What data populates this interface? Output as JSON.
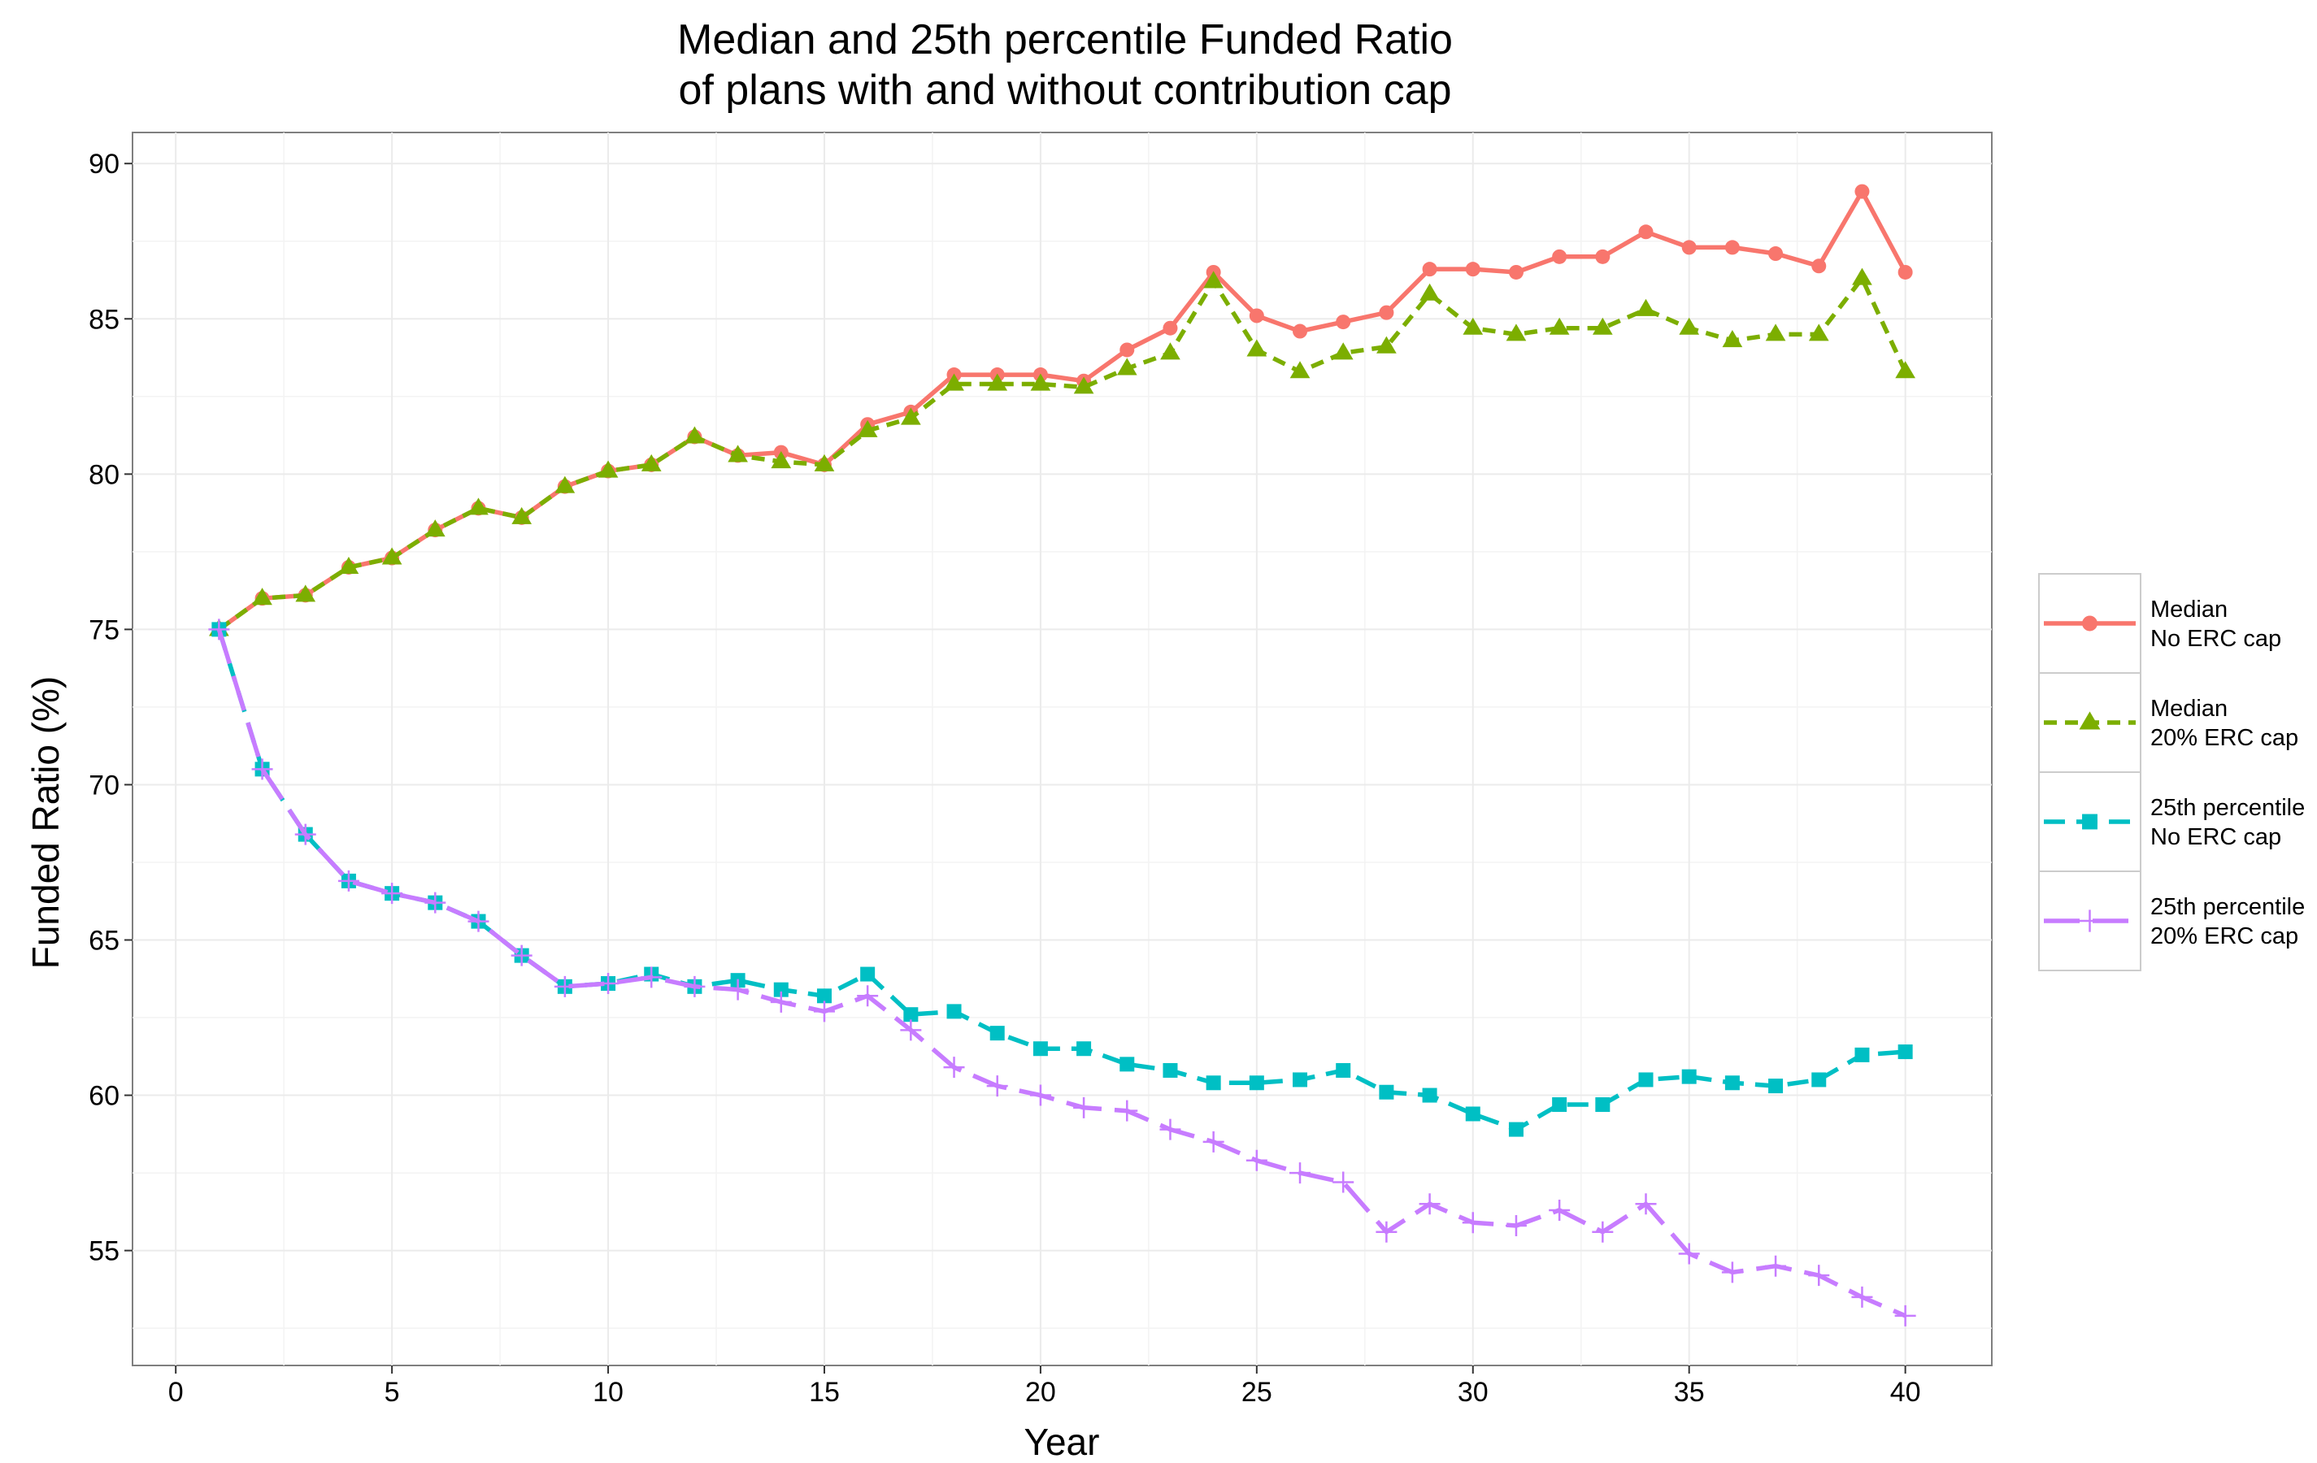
{
  "chart_data": {
    "type": "line",
    "title": [
      "Median and 25th percentile Funded Ratio",
      "of plans with and without contribution cap"
    ],
    "xlabel": "Year",
    "ylabel": "Funded Ratio (%)",
    "xlim": [
      -1,
      42
    ],
    "ylim": [
      51.3,
      91
    ],
    "xticks": [
      0,
      5,
      10,
      15,
      20,
      25,
      30,
      35,
      40
    ],
    "yticks": [
      55,
      60,
      65,
      70,
      75,
      80,
      85,
      90
    ],
    "grid": true,
    "legend_position": "right",
    "x": [
      1,
      2,
      3,
      4,
      5,
      6,
      7,
      8,
      9,
      10,
      11,
      12,
      13,
      14,
      15,
      16,
      17,
      18,
      19,
      20,
      21,
      22,
      23,
      24,
      25,
      26,
      27,
      28,
      29,
      30,
      31,
      32,
      33,
      34,
      35,
      36,
      37,
      38,
      39,
      40
    ],
    "series": [
      {
        "name": [
          "Median",
          "No ERC cap"
        ],
        "color": "#F8766D",
        "dash": "solid",
        "marker": "circle",
        "values": [
          75.0,
          76.0,
          76.1,
          77.0,
          77.3,
          78.2,
          78.9,
          78.6,
          79.6,
          80.1,
          80.3,
          81.2,
          80.6,
          80.7,
          80.3,
          81.6,
          82.0,
          83.2,
          83.2,
          83.2,
          83.0,
          84.0,
          84.7,
          86.5,
          85.1,
          84.6,
          84.9,
          85.2,
          86.6,
          86.6,
          86.5,
          87.0,
          87.0,
          87.8,
          87.3,
          87.3,
          87.1,
          86.7,
          89.1,
          86.5
        ]
      },
      {
        "name": [
          "Median",
          "20% ERC cap"
        ],
        "color": "#7CAE00",
        "dash": "dotted",
        "marker": "triangle",
        "values": [
          75.0,
          76.0,
          76.1,
          77.0,
          77.3,
          78.2,
          78.9,
          78.6,
          79.6,
          80.1,
          80.3,
          81.2,
          80.6,
          80.4,
          80.3,
          81.4,
          81.8,
          82.9,
          82.9,
          82.9,
          82.8,
          83.4,
          83.9,
          86.2,
          84.0,
          83.3,
          83.9,
          84.1,
          85.8,
          84.7,
          84.5,
          84.7,
          84.7,
          85.3,
          84.7,
          84.3,
          84.5,
          84.5,
          86.3,
          83.3
        ]
      },
      {
        "name": [
          "25th percentile",
          "No ERC cap"
        ],
        "color": "#00BFC4",
        "dash": "dashed",
        "marker": "square",
        "values": [
          75.0,
          70.5,
          68.4,
          66.9,
          66.5,
          66.2,
          65.6,
          64.5,
          63.5,
          63.6,
          63.9,
          63.5,
          63.7,
          63.4,
          63.2,
          63.9,
          62.6,
          62.7,
          62.0,
          61.5,
          61.5,
          61.0,
          60.8,
          60.4,
          60.4,
          60.5,
          60.8,
          60.1,
          60.0,
          59.4,
          58.9,
          59.7,
          59.7,
          60.5,
          60.6,
          60.4,
          60.3,
          60.5,
          61.3,
          61.4
        ]
      },
      {
        "name": [
          "25th percentile",
          "20% ERC cap"
        ],
        "color": "#C77CFF",
        "dash": "longdash",
        "marker": "plus",
        "values": [
          75.0,
          70.5,
          68.4,
          66.9,
          66.5,
          66.2,
          65.6,
          64.5,
          63.5,
          63.6,
          63.8,
          63.5,
          63.4,
          63.0,
          62.7,
          63.2,
          62.1,
          60.9,
          60.3,
          60.0,
          59.6,
          59.5,
          58.9,
          58.5,
          57.9,
          57.5,
          57.2,
          55.6,
          56.5,
          55.9,
          55.8,
          56.3,
          55.6,
          56.5,
          54.9,
          54.3,
          54.5,
          54.2,
          53.5,
          52.9
        ]
      }
    ]
  }
}
